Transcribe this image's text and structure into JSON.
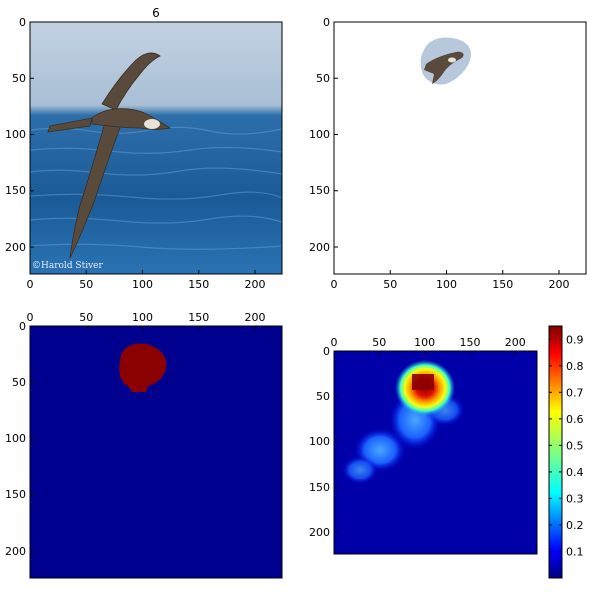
{
  "figure": {
    "suptitle": "6"
  },
  "chart_data": [
    {
      "type": "image",
      "panel": "input-photo",
      "title": "6",
      "content": "photograph of a dark albatross flying over blue ocean water",
      "watermark": "©Harold Stiver",
      "xlim": [
        0,
        224
      ],
      "ylim": [
        224,
        0
      ],
      "xticks": [
        "0",
        "50",
        "100",
        "150",
        "200"
      ],
      "yticks": [
        "0",
        "50",
        "100",
        "150",
        "200"
      ],
      "x_axis_position": "bottom",
      "colors": {
        "sky": "#b7c9dc",
        "sea": "#1d5f9c",
        "bird": "#5a4a3c"
      }
    },
    {
      "type": "image",
      "panel": "masked-photo",
      "content": "white background with only the bird region of the photo kept",
      "masked_region": {
        "x": [
          78,
          122
        ],
        "y": [
          12,
          58
        ]
      },
      "xlim": [
        0,
        224
      ],
      "ylim": [
        224,
        0
      ],
      "xticks": [
        "0",
        "50",
        "100",
        "150",
        "200"
      ],
      "yticks": [
        "0",
        "50",
        "100",
        "150",
        "200"
      ],
      "x_axis_position": "bottom"
    },
    {
      "type": "heatmap",
      "panel": "binary-mask",
      "content": "binary segmentation mask, dark blue background with one red blob",
      "blob": {
        "center": [
          105,
          35
        ],
        "x": [
          80,
          120
        ],
        "y": [
          14,
          58
        ]
      },
      "xlim": [
        0,
        224
      ],
      "ylim": [
        224,
        0
      ],
      "xticks": [
        "0",
        "50",
        "100",
        "150",
        "200"
      ],
      "yticks": [
        "0",
        "50",
        "100",
        "150",
        "200"
      ],
      "x_axis_position": "top",
      "colors": {
        "background": "#00008f",
        "blob": "#8b0000"
      }
    },
    {
      "type": "heatmap",
      "panel": "saliency-map",
      "content": "continuous saliency heatmap in jet colormap, peak near the bird head",
      "peak": {
        "x": 100,
        "y": 27,
        "value": 0.95
      },
      "xlim": [
        0,
        224
      ],
      "ylim": [
        224,
        0
      ],
      "xticks": [
        "0",
        "50",
        "100",
        "150",
        "200"
      ],
      "yticks": [
        "0",
        "50",
        "100",
        "150",
        "200"
      ],
      "x_axis_position": "top",
      "colormap": "jet",
      "colorbar": {
        "range": [
          0.0,
          0.95
        ],
        "ticks": [
          "0.1",
          "0.2",
          "0.3",
          "0.4",
          "0.5",
          "0.6",
          "0.7",
          "0.8",
          "0.9"
        ]
      }
    }
  ]
}
